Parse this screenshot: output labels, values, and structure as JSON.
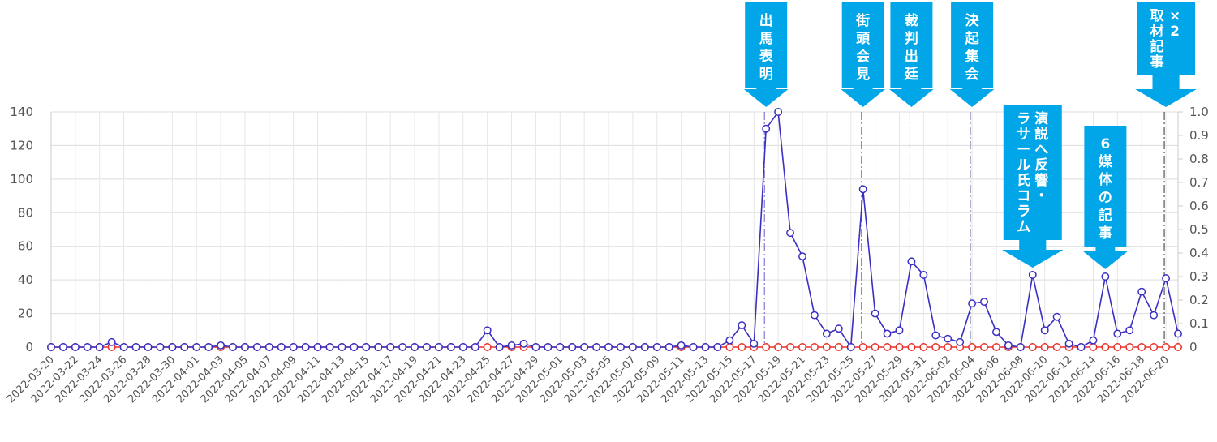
{
  "chart_data": {
    "type": "line",
    "title": "",
    "xlabel": "",
    "ylabel": "",
    "ylim": [
      0,
      140
    ],
    "y2lim": [
      0,
      1.0
    ],
    "yticks": [
      0,
      20,
      40,
      60,
      80,
      100,
      120,
      140
    ],
    "y2ticks": [
      "0",
      "0.1",
      "0.2",
      "0.3",
      "0.4",
      "0.5",
      "0.6",
      "0.7",
      "0.8",
      "0.9",
      "1.0"
    ],
    "grid": true,
    "legend": "none",
    "start_date": "2022-03-20",
    "x": [
      "2022-03-20",
      "2022-03-21",
      "2022-03-22",
      "2022-03-23",
      "2022-03-24",
      "2022-03-25",
      "2022-03-26",
      "2022-03-27",
      "2022-03-28",
      "2022-03-29",
      "2022-03-30",
      "2022-03-31",
      "2022-04-01",
      "2022-04-02",
      "2022-04-03",
      "2022-04-04",
      "2022-04-05",
      "2022-04-06",
      "2022-04-07",
      "2022-04-08",
      "2022-04-09",
      "2022-04-10",
      "2022-04-11",
      "2022-04-12",
      "2022-04-13",
      "2022-04-14",
      "2022-04-15",
      "2022-04-16",
      "2022-04-17",
      "2022-04-18",
      "2022-04-19",
      "2022-04-20",
      "2022-04-21",
      "2022-04-22",
      "2022-04-23",
      "2022-04-24",
      "2022-04-25",
      "2022-04-26",
      "2022-04-27",
      "2022-04-28",
      "2022-04-29",
      "2022-04-30",
      "2022-05-01",
      "2022-05-02",
      "2022-05-03",
      "2022-05-04",
      "2022-05-05",
      "2022-05-06",
      "2022-05-07",
      "2022-05-08",
      "2022-05-09",
      "2022-05-10",
      "2022-05-11",
      "2022-05-12",
      "2022-05-13",
      "2022-05-14",
      "2022-05-15",
      "2022-05-16",
      "2022-05-17",
      "2022-05-18",
      "2022-05-19",
      "2022-05-20",
      "2022-05-21",
      "2022-05-22",
      "2022-05-23",
      "2022-05-24",
      "2022-05-25",
      "2022-05-26",
      "2022-05-27",
      "2022-05-28",
      "2022-05-29",
      "2022-05-30",
      "2022-05-31",
      "2022-06-01",
      "2022-06-02",
      "2022-06-03",
      "2022-06-04",
      "2022-06-05",
      "2022-06-06",
      "2022-06-07",
      "2022-06-08",
      "2022-06-09",
      "2022-06-10",
      "2022-06-11",
      "2022-06-12",
      "2022-06-13",
      "2022-06-14",
      "2022-06-15",
      "2022-06-16",
      "2022-06-17",
      "2022-06-18",
      "2022-06-19",
      "2022-06-20",
      "2022-06-21"
    ],
    "series": [
      {
        "color": "#3a2fc2",
        "axis": "left",
        "values": [
          0,
          0,
          0,
          0,
          0,
          3,
          0,
          0,
          0,
          0,
          0,
          0,
          0,
          0,
          1,
          0,
          0,
          0,
          0,
          0,
          0,
          0,
          0,
          0,
          0,
          0,
          0,
          0,
          0,
          0,
          0,
          0,
          0,
          0,
          0,
          0,
          10,
          0,
          1,
          2,
          0,
          0,
          0,
          0,
          0,
          0,
          0,
          0,
          0,
          0,
          0,
          0,
          1,
          0,
          0,
          0,
          4,
          13,
          2,
          130,
          140,
          68,
          54,
          19,
          8,
          11,
          0,
          94,
          20,
          8,
          10,
          51,
          43,
          7,
          5,
          3,
          26,
          27,
          9,
          1,
          0,
          43,
          10,
          18,
          2,
          0,
          4,
          42,
          8,
          10,
          33,
          19,
          41,
          8
        ]
      },
      {
        "color": "#e8312a",
        "axis": "right",
        "values": [
          0,
          0,
          0,
          0,
          0,
          0,
          0,
          0,
          0,
          0,
          0,
          0,
          0,
          0,
          0,
          0,
          0,
          0,
          0,
          0,
          0,
          0,
          0,
          0,
          0,
          0,
          0,
          0,
          0,
          0,
          0,
          0,
          0,
          0,
          0,
          0,
          0,
          0,
          0,
          0,
          0,
          0,
          0,
          0,
          0,
          0,
          0,
          0,
          0,
          0,
          0,
          0,
          0,
          0,
          0,
          0,
          0,
          0,
          0,
          0,
          0,
          0,
          0,
          0,
          0,
          0,
          0,
          0,
          0,
          0,
          0,
          0,
          0,
          0,
          0,
          0,
          0,
          0,
          0,
          0,
          0,
          0,
          0,
          0,
          0,
          0,
          0,
          0,
          0,
          0,
          0,
          0,
          0,
          0
        ]
      }
    ],
    "annotations": [
      {
        "date": "2022-05-18",
        "lines": [
          "出",
          "馬",
          "表",
          "明"
        ],
        "stroke": "#6a5acd",
        "dash": "dashdot"
      },
      {
        "date": "2022-05-26",
        "lines": [
          "街",
          "頭",
          "会",
          "見"
        ],
        "stroke": "#7a7aaa",
        "dash": "dashdot"
      },
      {
        "date": "2022-05-30",
        "lines": [
          "裁",
          "判",
          "出",
          "廷"
        ],
        "stroke": "#7a7aaa",
        "dash": "dashdot"
      },
      {
        "date": "2022-06-04",
        "lines": [
          "決",
          "起",
          "集",
          "会"
        ],
        "stroke": "#7a7aaa",
        "dash": "dashdot"
      },
      {
        "date": "2022-06-09",
        "lines": [
          "演説へ反響・",
          "ラサール氏コラム"
        ],
        "stroke": "none",
        "dash": "none"
      },
      {
        "date": "2022-06-15",
        "lines": [
          "6",
          "媒",
          "体",
          "の",
          "記",
          "事"
        ],
        "stroke": "none",
        "dash": "none"
      },
      {
        "date": "2022-06-20",
        "lines": [
          "×2",
          "取材記事"
        ],
        "stroke": "#333333",
        "dash": "dashdot"
      }
    ],
    "annotation_color": "#00a6e8"
  }
}
